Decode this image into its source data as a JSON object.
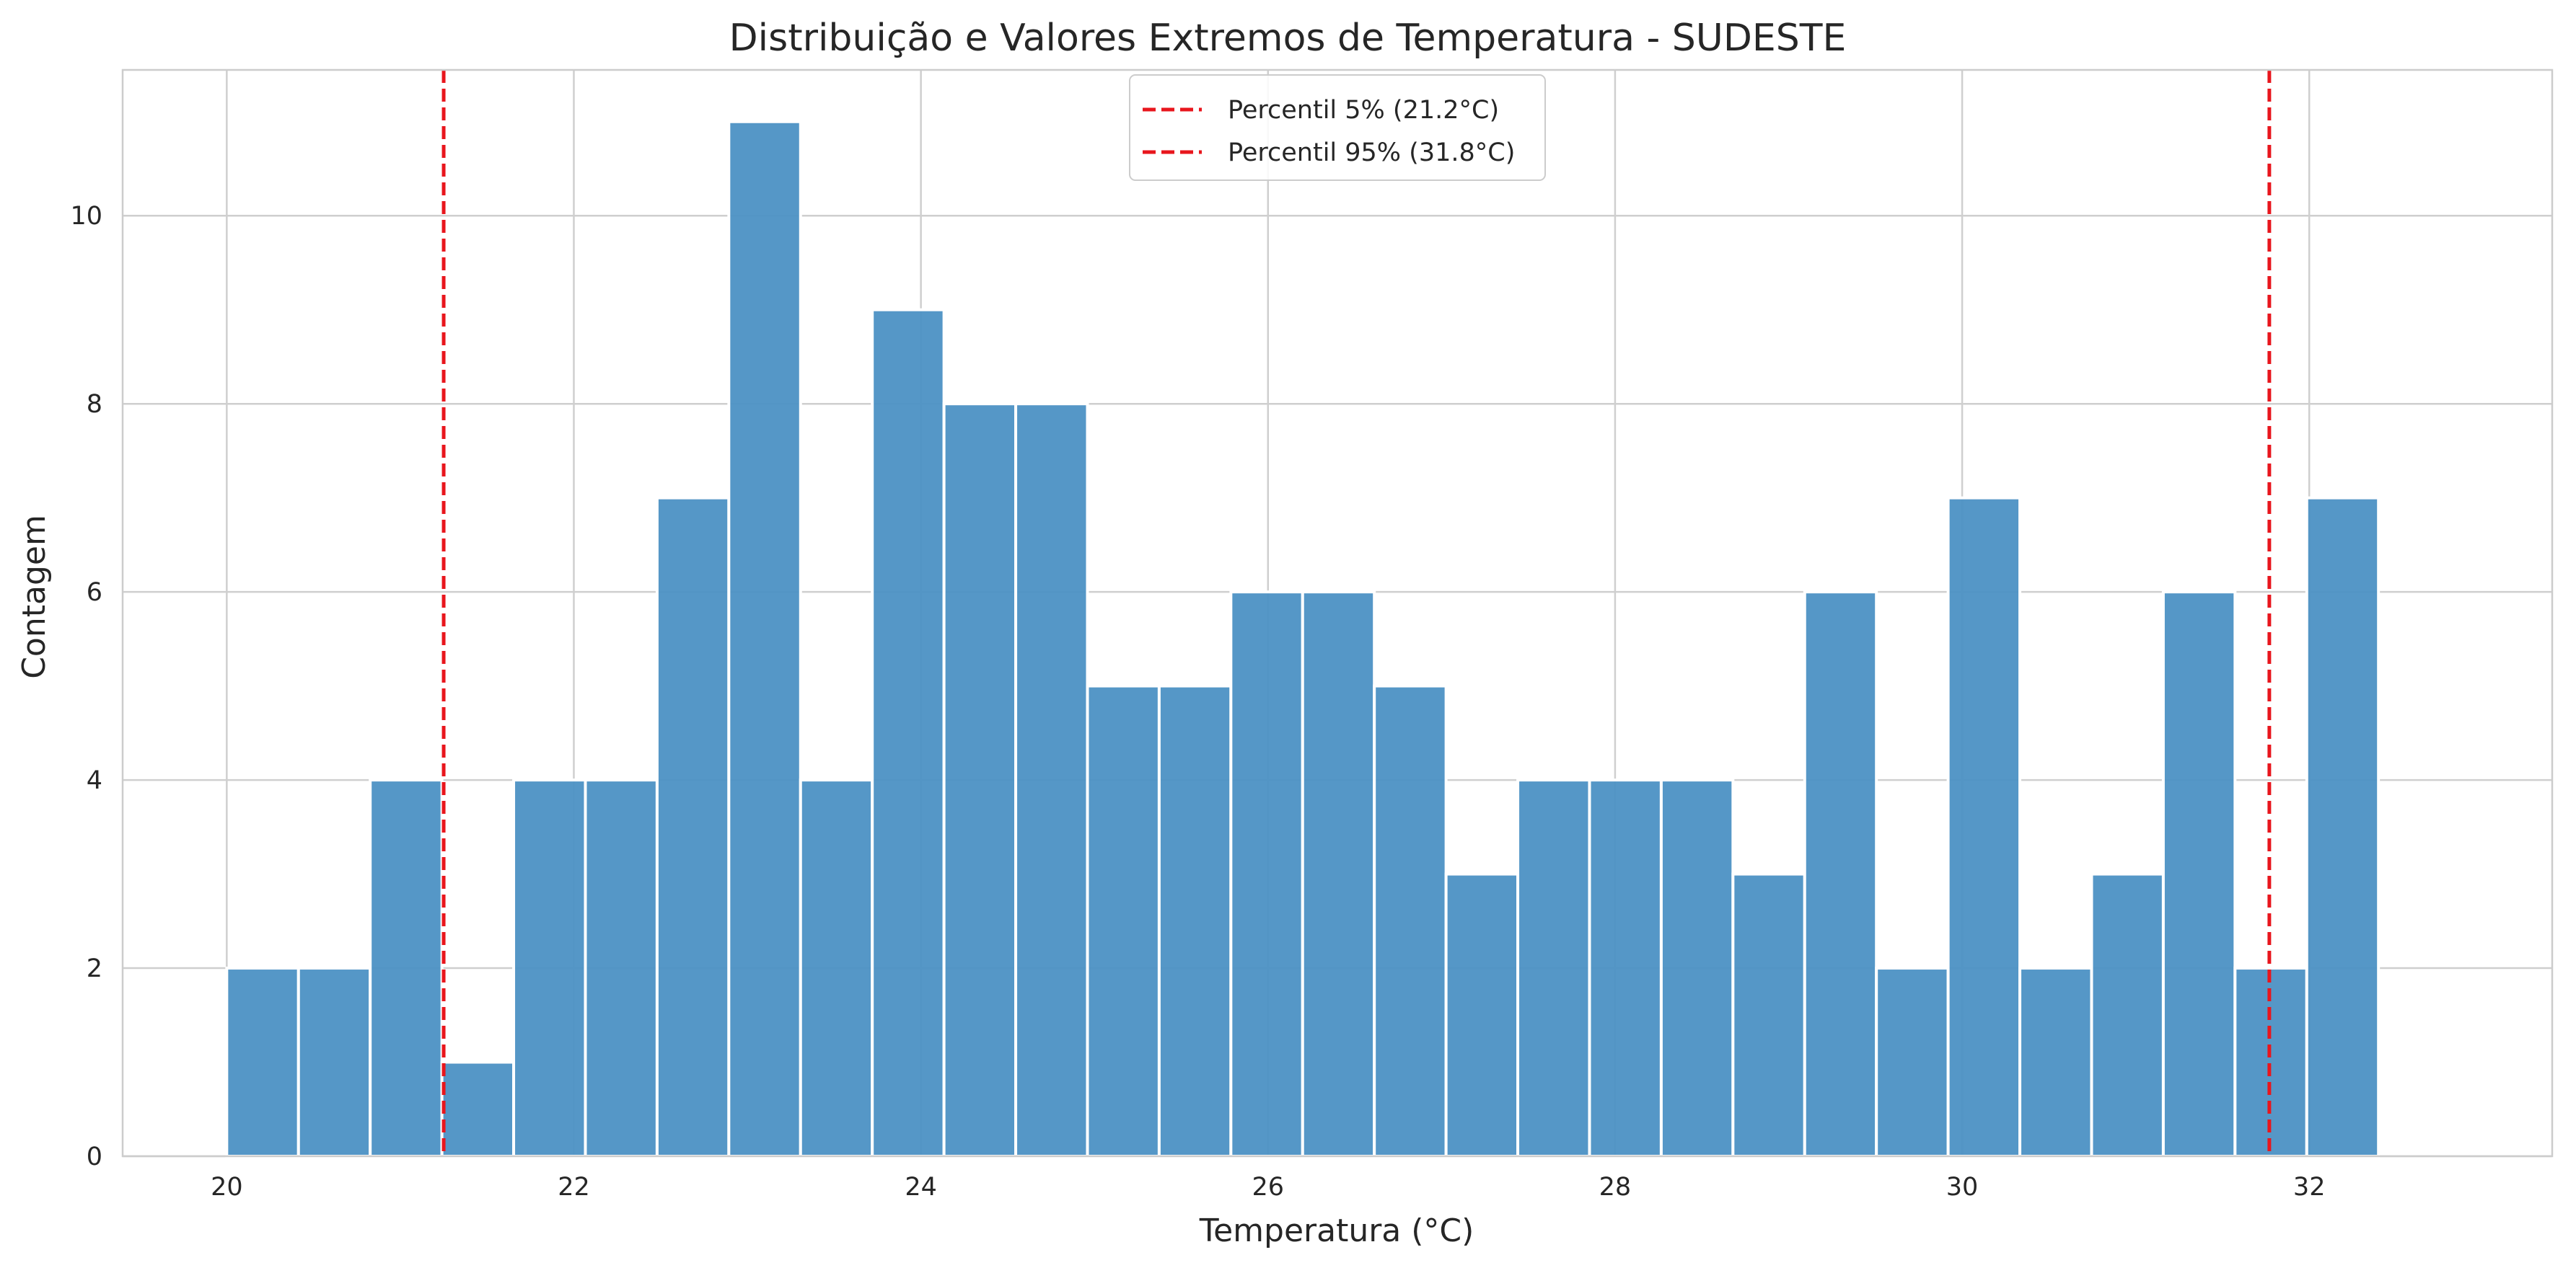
{
  "chart_data": {
    "type": "bar",
    "subtype": "histogram",
    "title": "Distribuição e Valores Extremos de Temperatura - SUDESTE",
    "xlabel": "Temperatura (°C)",
    "ylabel": "Contagem",
    "xlim": [
      19.4,
      33.4
    ],
    "ylim": [
      0,
      11.55
    ],
    "grid": true,
    "x_ticks": [
      20,
      22,
      24,
      26,
      28,
      30,
      32
    ],
    "y_ticks": [
      0,
      2,
      4,
      6,
      8,
      10
    ],
    "bin_start": 20.0,
    "bin_width": 0.4133,
    "counts": [
      2,
      2,
      4,
      1,
      4,
      4,
      7,
      11,
      4,
      9,
      8,
      8,
      5,
      5,
      6,
      6,
      5,
      3,
      4,
      4,
      4,
      3,
      6,
      2,
      7,
      2,
      3,
      6,
      2,
      7
    ],
    "bar_color": "#4c91c4",
    "reference_lines": [
      {
        "label": "Percentil 5% (21.2°C)",
        "x": 21.25,
        "color": "#e8161d",
        "style": "dashed"
      },
      {
        "label": "Percentil 95% (31.8°C)",
        "x": 31.77,
        "color": "#e8161d",
        "style": "dashed"
      }
    ],
    "legend_position": "top-center"
  }
}
